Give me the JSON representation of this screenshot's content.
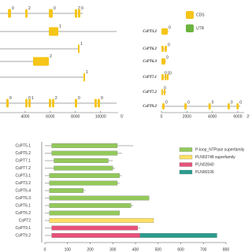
{
  "gene_structure": {
    "legend": [
      {
        "name": "CDS",
        "color": "#f5c518"
      },
      {
        "name": "UTR",
        "color": "#6db33f"
      }
    ],
    "left": {
      "xlim": [
        2000,
        11400
      ],
      "xticks": [
        4000,
        6000,
        8000,
        10000
      ],
      "end_label": "5'",
      "genes": [
        {
          "length": 8580,
          "exons": [
            {
              "start": 2630,
              "end": 2880,
              "label": "0"
            },
            {
              "start": 4010,
              "end": 4190,
              "label": "2"
            },
            {
              "start": 5890,
              "end": 6200,
              "label": "0"
            },
            {
              "start": 7950,
              "end": 8140,
              "label": "2"
            },
            {
              "start": 8200,
              "end": 8390,
              "label": "0"
            }
          ]
        },
        {
          "length": 11280,
          "exons": [
            {
              "start": 5890,
              "end": 6640,
              "label": "1"
            }
          ]
        },
        {
          "length": 8330,
          "exons": [
            {
              "start": 8200,
              "end": 8330,
              "label": "1"
            }
          ]
        },
        {
          "length": 5890,
          "exons": [
            {
              "start": 4630,
              "end": 5890,
              "label": "2"
            }
          ]
        },
        {
          "length": 8770,
          "exons": [
            {
              "start": 8640,
              "end": 8770,
              "label": "1"
            }
          ]
        },
        {
          "length": 11280,
          "exons": [
            {
              "start": 2500,
              "end": 2690,
              "label": "0"
            },
            {
              "start": 4010,
              "end": 4190,
              "label": "0"
            },
            {
              "start": 4260,
              "end": 4440,
              "label": "1"
            },
            {
              "start": 5890,
              "end": 6070
            },
            {
              "start": 6140,
              "end": 6320,
              "label": "2"
            },
            {
              "start": 7950,
              "end": 8140,
              "label": "0"
            },
            {
              "start": 9520,
              "end": 9710
            },
            {
              "start": 9770,
              "end": 9960,
              "label": "0"
            }
          ]
        }
      ]
    },
    "right": {
      "xlim": [
        0,
        6500
      ],
      "xticks": [
        0,
        2000,
        4000,
        6000
      ],
      "end_label": "3'",
      "genes": [
        {
          "name": "CsPT3.2",
          "length": 560,
          "exons": [
            {
              "start": 0,
              "end": 500,
              "label": "0"
            }
          ]
        },
        {
          "name": "CsPT6.2",
          "length": 430,
          "exons": [
            {
              "start": 0,
              "end": 180
            },
            {
              "start": 250,
              "end": 430,
              "label": "0"
            }
          ]
        },
        {
          "name": "CsPT6.3",
          "length": 370,
          "exons": [
            {
              "start": 0,
              "end": 310,
              "label": "0"
            }
          ]
        },
        {
          "name": "CsPT7.1",
          "length": 560,
          "exons": [
            {
              "start": 0,
              "end": 180,
              "label": "0"
            },
            {
              "start": 250,
              "end": 400,
              "label": "1"
            },
            {
              "start": 430,
              "end": 560,
              "label": "0"
            }
          ]
        },
        {
          "name": "CsPT7.2",
          "length": 370,
          "exons": [
            {
              "start": 0,
              "end": 120,
              "label": "0"
            },
            {
              "start": 180,
              "end": 310
            }
          ]
        },
        {
          "name": "CsPT9.2",
          "length": 6200,
          "exons": [
            {
              "start": 60,
              "end": 250,
              "label": "0"
            },
            {
              "start": 1800,
              "end": 1990,
              "label": "0"
            },
            {
              "start": 3700,
              "end": 3880,
              "label": "0"
            },
            {
              "start": 5200,
              "end": 5380,
              "label": "0"
            },
            {
              "start": 5900,
              "end": 6080,
              "label": "0"
            }
          ]
        }
      ]
    }
  },
  "chart_data": {
    "type": "domain",
    "xlim": [
      0,
      800
    ],
    "xticks": [
      0,
      100,
      200,
      300,
      400,
      500,
      600,
      700,
      800
    ],
    "families": [
      {
        "name": "P-loop_NTPase superfamily",
        "color": "#93c95a"
      },
      {
        "name": "PLN02748 superfamily",
        "color": "#ffe066"
      },
      {
        "name": "PLN02840",
        "color": "#e8517a"
      },
      {
        "name": "PLN00106",
        "color": "#2a9d8f"
      }
    ],
    "categories": [
      "CsPT5.1",
      "CsPT5.2",
      "CsPT7.1",
      "CsPT7.2",
      "CsPT3.1",
      "CsPT3.2",
      "CsPT6.4",
      "CsPT6.3",
      "CsPT6.1",
      "CsPT6.2",
      "CsPT2",
      "CsPT9.1",
      "CsPT9.2"
    ],
    "lengths": [
      390,
      340,
      300,
      310,
      340,
      330,
      180,
      460,
      390,
      330,
      480,
      420,
      760
    ],
    "domains": [
      [
        {
          "family": 0,
          "start": 30,
          "end": 320
        }
      ],
      [
        {
          "family": 0,
          "start": 30,
          "end": 320
        }
      ],
      [
        {
          "family": 0,
          "start": 40,
          "end": 280
        }
      ],
      [
        {
          "family": 0,
          "start": 40,
          "end": 300
        }
      ],
      [
        {
          "family": 0,
          "start": 20,
          "end": 330
        }
      ],
      [
        {
          "family": 0,
          "start": 20,
          "end": 320
        }
      ],
      [
        {
          "family": 0,
          "start": 20,
          "end": 170
        }
      ],
      [
        {
          "family": 0,
          "start": 20,
          "end": 460
        }
      ],
      [
        {
          "family": 0,
          "start": 20,
          "end": 380
        }
      ],
      [
        {
          "family": 0,
          "start": 20,
          "end": 330
        }
      ],
      [
        {
          "family": 1,
          "start": 20,
          "end": 480
        }
      ],
      [
        {
          "family": 2,
          "start": 30,
          "end": 410
        }
      ],
      [
        {
          "family": 2,
          "start": 30,
          "end": 420
        },
        {
          "family": 3,
          "start": 420,
          "end": 760
        }
      ]
    ]
  }
}
